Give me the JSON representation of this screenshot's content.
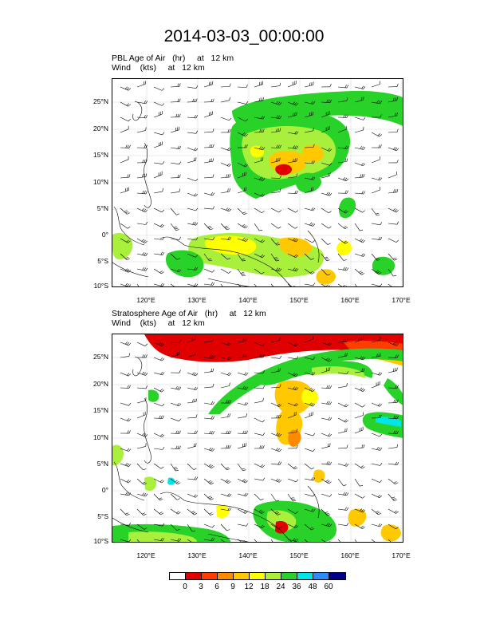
{
  "title": "2014-03-03_00:00:00",
  "panels": [
    {
      "field_line": "PBL Age of Air   (hr)     at   12 km",
      "wind_line": "Wind    (kts)     at   12 km"
    },
    {
      "field_line": "Stratosphere Age of Air   (hr)     at   12 km",
      "wind_line": "Wind    (kts)     at   12 km"
    }
  ],
  "axes": {
    "lat_labels": [
      "25°N",
      "20°N",
      "15°N",
      "10°N",
      "5°N",
      "0°",
      "5°S",
      "10°S"
    ],
    "lon_labels": [
      "120°E",
      "130°E",
      "140°E",
      "150°E",
      "160°E",
      "170°E"
    ]
  },
  "colorbar": {
    "labels": [
      "0",
      "3",
      "6",
      "9",
      "12",
      "18",
      "24",
      "36",
      "48",
      "60"
    ],
    "colors": [
      "#ffffff",
      "#e00000",
      "#ff3d00",
      "#ff8a00",
      "#ffc800",
      "#ffff00",
      "#a8f03c",
      "#28d228",
      "#00e6e6",
      "#2b8cff",
      "#00008c"
    ]
  },
  "chart_data": {
    "type": "heatmap",
    "map": "filled contour of air age over the western Pacific with wind barbs",
    "lon_range": [
      116,
      173
    ],
    "lat_range": [
      -10,
      29
    ],
    "levels_hr": [
      0,
      3,
      6,
      9,
      12,
      18,
      24,
      36,
      48,
      60
    ]
  }
}
